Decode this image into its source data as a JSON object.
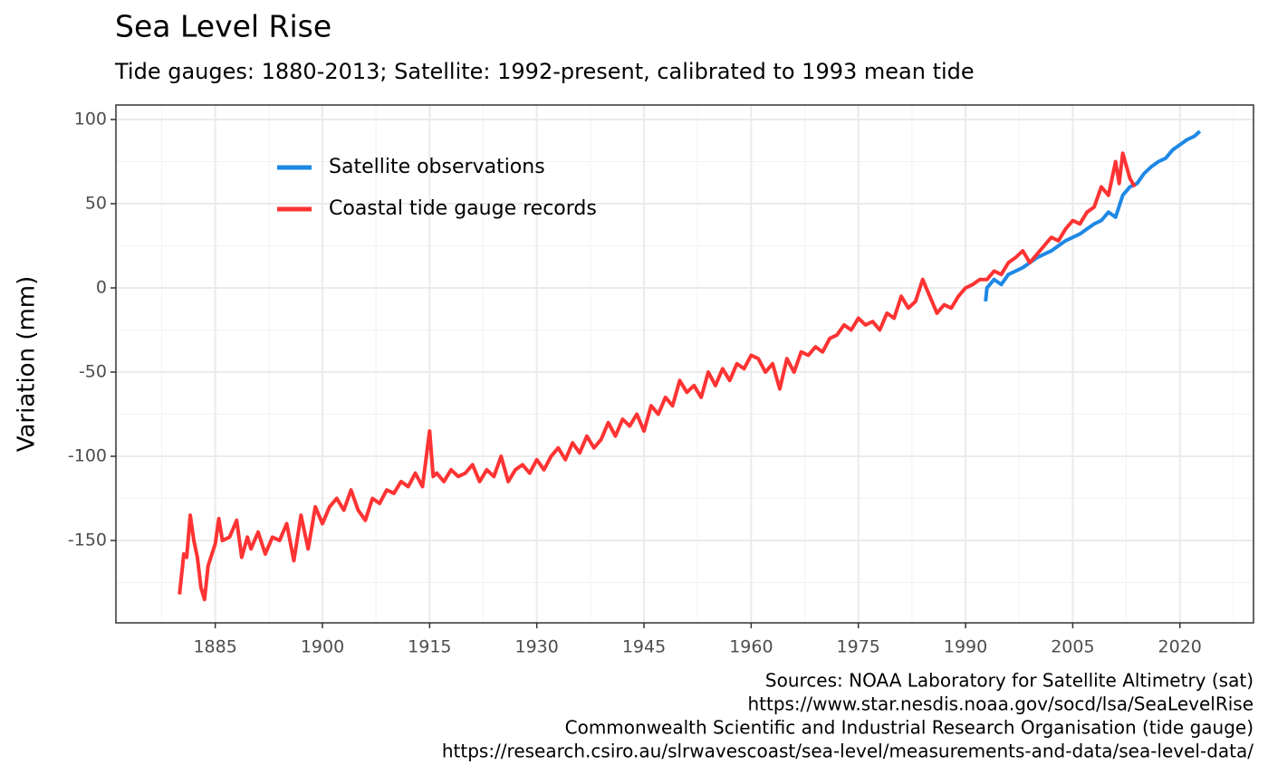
{
  "chart_data": {
    "type": "line",
    "title": "Sea Level Rise",
    "subtitle": "Tide gauges: 1880-2013; Satellite: 1992-present, calibrated to 1993 mean tide",
    "ylabel": "Variation (mm)",
    "caption": [
      "Sources: NOAA Laboratory for Satellite Altimetry (sat)",
      "https://www.star.nesdis.noaa.gov/socd/lsa/SeaLevelRise",
      "Commonwealth Scientific and Industrial Research Organisation (tide gauge)",
      "https://research.csiro.au/slrwavescoast/sea-level/measurements-and-data/sea-level-data/"
    ],
    "xlim": [
      1871.1,
      2030.3
    ],
    "xticks": [
      1885,
      1900,
      1915,
      1930,
      1945,
      1960,
      1975,
      1990,
      2005,
      2020
    ],
    "ylim": [
      -198.9,
      108.6
    ],
    "yticks": [
      -150,
      -100,
      -50,
      0,
      50,
      100
    ],
    "grid": true,
    "legend": "top-left",
    "series": [
      {
        "name": "Satellite observations",
        "color": "#1e88e5",
        "x": [
          1992.8,
          1993,
          1994,
          1995,
          1996,
          1997,
          1998,
          1999,
          2000,
          2001,
          2002,
          2003,
          2004,
          2005,
          2006,
          2007,
          2008,
          2009,
          2010,
          2011,
          2012,
          2013,
          2014,
          2015,
          2016,
          2017,
          2018,
          2019,
          2020,
          2021,
          2022,
          2022.8
        ],
        "values": [
          -8,
          0,
          5,
          2,
          8,
          10,
          12,
          15,
          18,
          20,
          22,
          25,
          28,
          30,
          32,
          35,
          38,
          40,
          45,
          42,
          55,
          60,
          62,
          68,
          72,
          75,
          77,
          82,
          85,
          88,
          90,
          93
        ]
      },
      {
        "name": "Coastal tide gauge records",
        "color": "#ff3333",
        "x": [
          1880,
          1880.6,
          1881,
          1881.5,
          1882,
          1882.5,
          1883,
          1883.5,
          1884,
          1885,
          1885.5,
          1886,
          1887,
          1888,
          1888.7,
          1889.5,
          1890,
          1891,
          1892,
          1893,
          1894,
          1895,
          1896,
          1897,
          1898,
          1899,
          1900,
          1901,
          1902,
          1903,
          1904,
          1905,
          1906,
          1907,
          1908,
          1909,
          1910,
          1911,
          1912,
          1913,
          1914,
          1915,
          1915.5,
          1916,
          1917,
          1918,
          1919,
          1920,
          1921,
          1922,
          1923,
          1924,
          1925,
          1926,
          1927,
          1928,
          1929,
          1930,
          1931,
          1932,
          1933,
          1934,
          1935,
          1936,
          1937,
          1938,
          1939,
          1940,
          1941,
          1942,
          1943,
          1944,
          1945,
          1946,
          1947,
          1948,
          1949,
          1950,
          1951,
          1952,
          1953,
          1954,
          1955,
          1956,
          1957,
          1958,
          1959,
          1960,
          1961,
          1962,
          1963,
          1964,
          1965,
          1966,
          1967,
          1968,
          1969,
          1970,
          1971,
          1972,
          1973,
          1974,
          1975,
          1976,
          1977,
          1978,
          1979,
          1980,
          1981,
          1982,
          1983,
          1984,
          1985,
          1986,
          1987,
          1988,
          1989,
          1990,
          1991,
          1992,
          1993,
          1994,
          1995,
          1996,
          1997,
          1998,
          1999,
          2000,
          2001,
          2002,
          2003,
          2004,
          2005,
          2006,
          2007,
          2008,
          2009,
          2010,
          2011,
          2011.5,
          2012,
          2013,
          2013.7
        ],
        "values": [
          -182,
          -158,
          -160,
          -135,
          -150,
          -160,
          -178,
          -185,
          -165,
          -152,
          -137,
          -150,
          -148,
          -138,
          -160,
          -148,
          -155,
          -145,
          -158,
          -148,
          -150,
          -140,
          -162,
          -135,
          -155,
          -130,
          -140,
          -130,
          -125,
          -132,
          -120,
          -132,
          -138,
          -125,
          -128,
          -120,
          -122,
          -115,
          -118,
          -110,
          -118,
          -85,
          -112,
          -110,
          -115,
          -108,
          -112,
          -110,
          -105,
          -115,
          -108,
          -112,
          -100,
          -115,
          -108,
          -105,
          -110,
          -102,
          -108,
          -100,
          -95,
          -102,
          -92,
          -98,
          -88,
          -95,
          -90,
          -80,
          -88,
          -78,
          -82,
          -75,
          -85,
          -70,
          -75,
          -65,
          -70,
          -55,
          -62,
          -58,
          -65,
          -50,
          -58,
          -48,
          -55,
          -45,
          -48,
          -40,
          -42,
          -50,
          -45,
          -60,
          -42,
          -50,
          -38,
          -40,
          -35,
          -38,
          -30,
          -28,
          -22,
          -25,
          -18,
          -22,
          -20,
          -25,
          -15,
          -18,
          -5,
          -12,
          -8,
          5,
          -5,
          -15,
          -10,
          -12,
          -5,
          0,
          2,
          5,
          5,
          10,
          8,
          15,
          18,
          22,
          15,
          20,
          25,
          30,
          28,
          35,
          40,
          38,
          45,
          48,
          60,
          55,
          75,
          62,
          80,
          65,
          60
        ]
      }
    ]
  }
}
